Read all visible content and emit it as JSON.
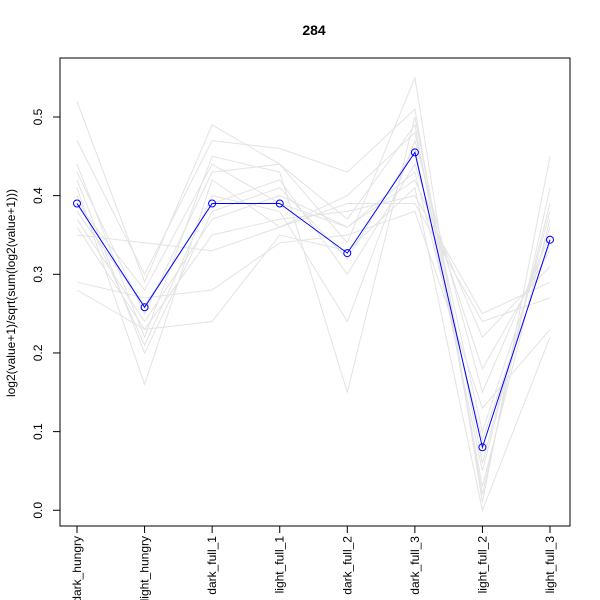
{
  "chart_data": {
    "type": "line",
    "title": "284",
    "xlabel": "",
    "ylabel": "log2(value+1)/sqrt(sum(log2(value+1)))",
    "categories": [
      "dark_hungry",
      "light_hungry",
      "dark_full_1",
      "light_full_1",
      "dark_full_2",
      "dark_full_3",
      "light_full_2",
      "light_full_3"
    ],
    "ylim": [
      -0.02,
      0.575
    ],
    "yticks": [
      0.0,
      0.1,
      0.2,
      0.3,
      0.4,
      0.5
    ],
    "ytick_labels": [
      "0.0",
      "0.1",
      "0.2",
      "0.3",
      "0.4",
      "0.5"
    ],
    "grid": false,
    "legend": "none",
    "colors": {
      "highlight": "#0000ff",
      "background_series": "#e3e3e3"
    },
    "highlight_series": {
      "values": [
        0.39,
        0.258,
        0.39,
        0.39,
        0.327,
        0.455,
        0.08,
        0.344
      ]
    },
    "background_series": [
      {
        "values": [
          0.52,
          0.29,
          0.49,
          0.44,
          0.34,
          0.55,
          0.01,
          0.45
        ]
      },
      {
        "values": [
          0.47,
          0.3,
          0.47,
          0.46,
          0.43,
          0.51,
          0.02,
          0.41
        ]
      },
      {
        "values": [
          0.44,
          0.22,
          0.45,
          0.43,
          0.15,
          0.5,
          0.06,
          0.38
        ]
      },
      {
        "values": [
          0.43,
          0.25,
          0.43,
          0.44,
          0.37,
          0.49,
          0.03,
          0.37
        ]
      },
      {
        "values": [
          0.41,
          0.16,
          0.42,
          0.36,
          0.4,
          0.48,
          0.1,
          0.36
        ]
      },
      {
        "values": [
          0.4,
          0.21,
          0.4,
          0.38,
          0.24,
          0.47,
          0.15,
          0.35
        ]
      },
      {
        "values": [
          0.38,
          0.26,
          0.39,
          0.42,
          0.3,
          0.44,
          0.18,
          0.33
        ]
      },
      {
        "values": [
          0.37,
          0.24,
          0.37,
          0.4,
          0.36,
          0.42,
          0.22,
          0.31
        ]
      },
      {
        "values": [
          0.36,
          0.23,
          0.35,
          0.37,
          0.38,
          0.4,
          0.25,
          0.29
        ]
      },
      {
        "values": [
          0.35,
          0.34,
          0.33,
          0.36,
          0.39,
          0.39,
          0.24,
          0.27
        ]
      },
      {
        "values": [
          0.29,
          0.27,
          0.28,
          0.34,
          0.35,
          0.38,
          0.13,
          0.23
        ]
      },
      {
        "values": [
          0.28,
          0.23,
          0.24,
          0.35,
          0.33,
          0.41,
          0.0,
          0.22
        ]
      },
      {
        "values": [
          0.42,
          0.2,
          0.38,
          0.41,
          0.32,
          0.46,
          0.05,
          0.39
        ]
      },
      {
        "values": [
          0.39,
          0.28,
          0.44,
          0.39,
          0.36,
          0.43,
          0.09,
          0.34
        ]
      }
    ]
  }
}
